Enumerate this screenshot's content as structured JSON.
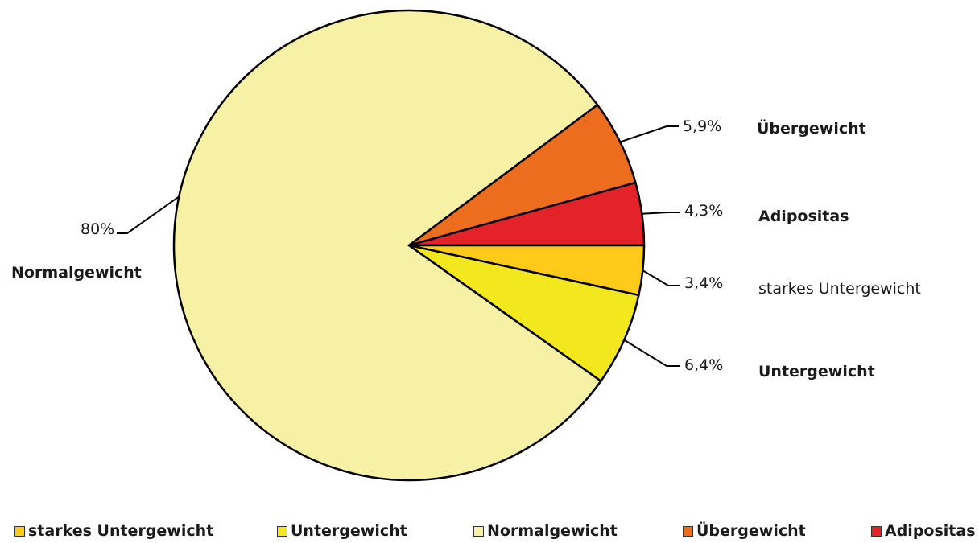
{
  "chart_data": {
    "type": "pie",
    "title": "",
    "slices": [
      {
        "name": "Normalgewicht",
        "value": 80,
        "value_label": "80%",
        "color": "#f6f1a4"
      },
      {
        "name": "Übergewicht",
        "value": 5.9,
        "value_label": "5,9%",
        "color": "#ed6d1f"
      },
      {
        "name": "Adipositas",
        "value": 4.3,
        "value_label": "4,3%",
        "color": "#e3222a"
      },
      {
        "name": "starkes Untergewicht",
        "value": 3.4,
        "value_label": "3,4%",
        "color": "#fecb1a"
      },
      {
        "name": "Untergewicht",
        "value": 6.4,
        "value_label": "6,4%",
        "color": "#f3e81d"
      }
    ],
    "legend": {
      "position": "bottom",
      "items": [
        {
          "label": "starkes Untergewicht",
          "color": "#fecb1a"
        },
        {
          "label": "Untergewicht",
          "color": "#f3e81d"
        },
        {
          "label": "Normalgewicht",
          "color": "#f6f1a4"
        },
        {
          "label": "Übergewicht",
          "color": "#ed6d1f"
        },
        {
          "label": "Adipositas",
          "color": "#e3222a"
        }
      ]
    }
  }
}
